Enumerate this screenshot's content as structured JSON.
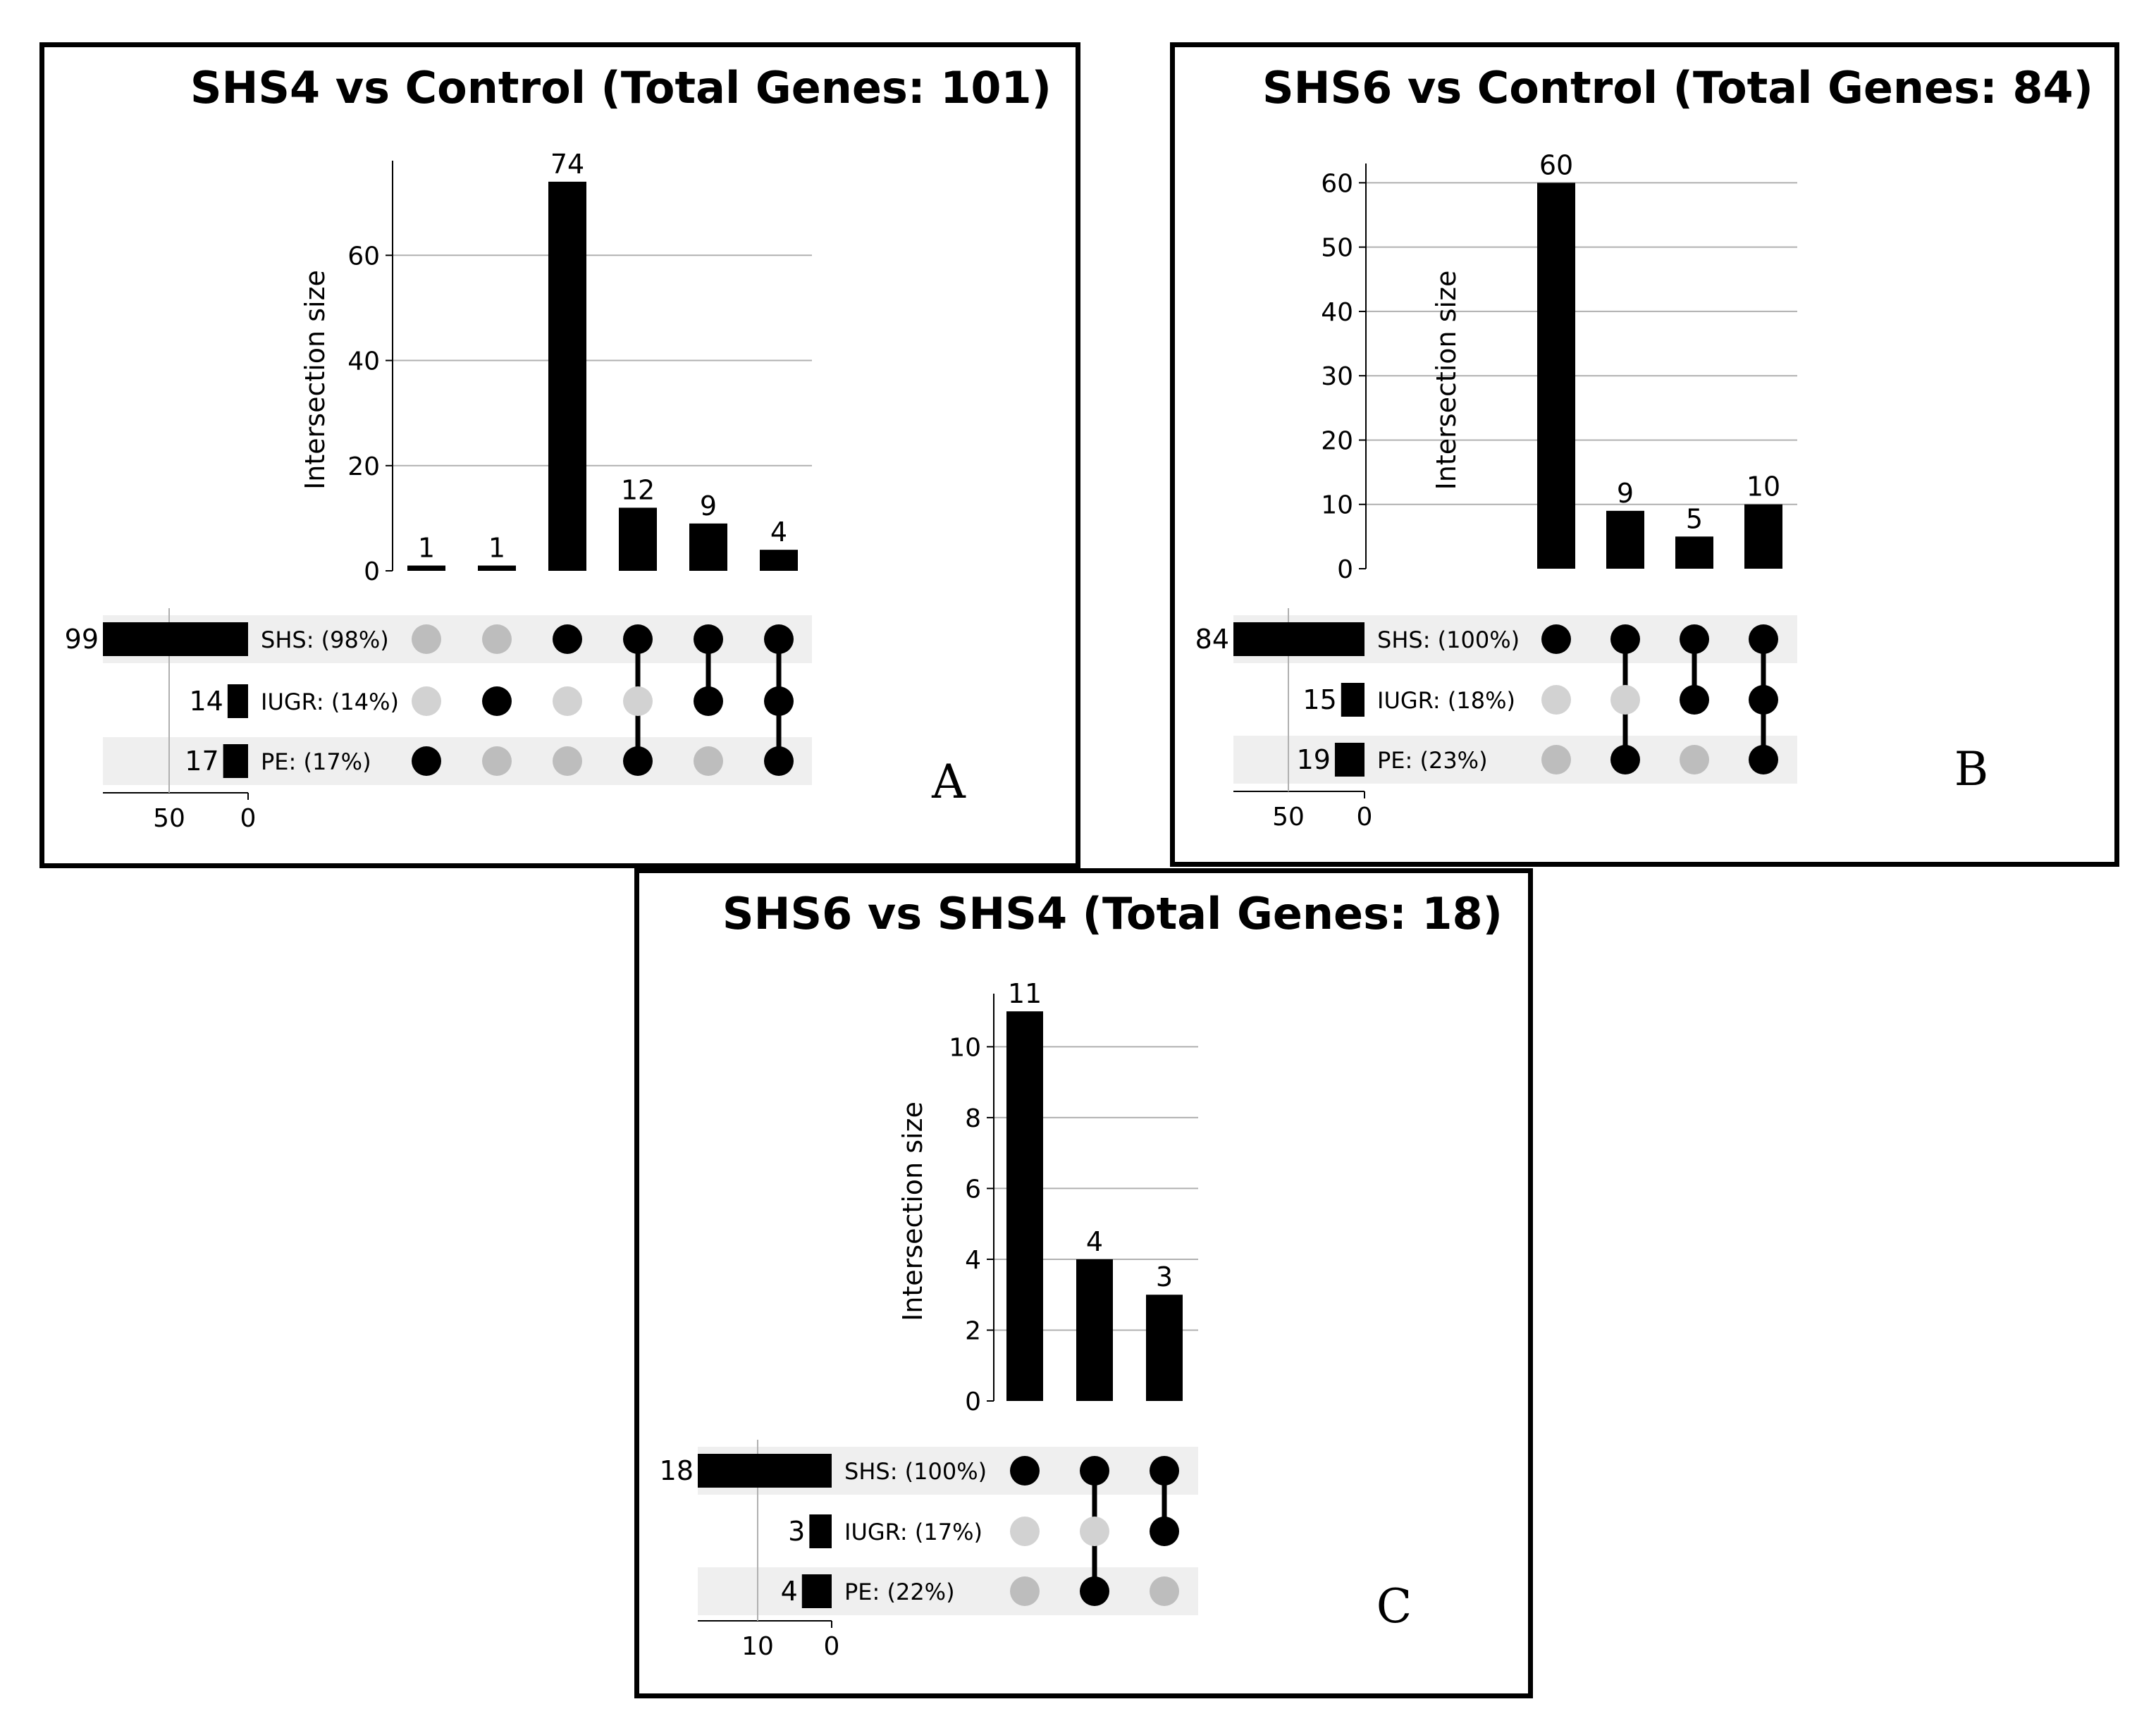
{
  "chart_data": [
    {
      "type": "upset",
      "title": "SHS4 vs Control (Total Genes: 101)",
      "panel_label": "A",
      "ylabel": "Intersection size",
      "ylim": [
        0,
        78
      ],
      "yticks": [
        0,
        20,
        40,
        60
      ],
      "set_size_ticks": [
        50,
        0
      ],
      "set_size_max": 99,
      "sets": [
        {
          "name": "SHS",
          "label": "SHS: (98%)",
          "size": 99,
          "size_label": "99"
        },
        {
          "name": "IUGR",
          "label": "IUGR: (14%)",
          "size": 14,
          "size_label": "14"
        },
        {
          "name": "PE",
          "label": "PE: (17%)",
          "size": 17,
          "size_label": "17"
        }
      ],
      "intersections": [
        {
          "sets": [
            "PE"
          ],
          "size": 1,
          "label": "1"
        },
        {
          "sets": [
            "IUGR"
          ],
          "size": 1,
          "label": "1"
        },
        {
          "sets": [
            "SHS"
          ],
          "size": 74,
          "label": "74"
        },
        {
          "sets": [
            "SHS",
            "PE"
          ],
          "size": 12,
          "label": "12"
        },
        {
          "sets": [
            "SHS",
            "IUGR"
          ],
          "size": 9,
          "label": "9"
        },
        {
          "sets": [
            "SHS",
            "IUGR",
            "PE"
          ],
          "size": 4,
          "label": "4"
        }
      ]
    },
    {
      "type": "upset",
      "title": "SHS6 vs Control (Total Genes: 84)",
      "panel_label": "B",
      "ylabel": "Intersection size",
      "ylim": [
        0,
        63
      ],
      "yticks": [
        0,
        10,
        20,
        30,
        40,
        50,
        60
      ],
      "set_size_ticks": [
        50,
        0
      ],
      "set_size_max": 84,
      "sets": [
        {
          "name": "SHS",
          "label": "SHS: (100%)",
          "size": 84,
          "size_label": "84"
        },
        {
          "name": "IUGR",
          "label": "IUGR: (18%)",
          "size": 15,
          "size_label": "15"
        },
        {
          "name": "PE",
          "label": "PE: (23%)",
          "size": 19,
          "size_label": "19"
        }
      ],
      "intersections": [
        {
          "sets": [
            "SHS"
          ],
          "size": 60,
          "label": "60"
        },
        {
          "sets": [
            "SHS",
            "PE"
          ],
          "size": 9,
          "label": "9"
        },
        {
          "sets": [
            "SHS",
            "IUGR"
          ],
          "size": 5,
          "label": "5"
        },
        {
          "sets": [
            "SHS",
            "IUGR",
            "PE"
          ],
          "size": 10,
          "label": "10"
        }
      ]
    },
    {
      "type": "upset",
      "title": "SHS6 vs SHS4 (Total Genes: 18)",
      "panel_label": "C",
      "ylabel": "Intersection size",
      "ylim": [
        0,
        11.5
      ],
      "yticks": [
        0,
        2,
        4,
        6,
        8,
        10
      ],
      "set_size_ticks": [
        10,
        0
      ],
      "set_size_max": 18,
      "sets": [
        {
          "name": "SHS",
          "label": "SHS: (100%)",
          "size": 18,
          "size_label": "18"
        },
        {
          "name": "IUGR",
          "label": "IUGR: (17%)",
          "size": 3,
          "size_label": "3"
        },
        {
          "name": "PE",
          "label": "PE: (22%)",
          "size": 4,
          "size_label": "4"
        }
      ],
      "intersections": [
        {
          "sets": [
            "SHS"
          ],
          "size": 11,
          "label": "11"
        },
        {
          "sets": [
            "SHS",
            "PE"
          ],
          "size": 4,
          "label": "4"
        },
        {
          "sets": [
            "SHS",
            "IUGR"
          ],
          "size": 3,
          "label": "3"
        }
      ]
    }
  ],
  "colors": {
    "bar": "#000000",
    "active_dot": "#000000",
    "inactive_dot_light": "#d2d2d2",
    "inactive_dot_dark": "#bdbdbd",
    "row_shade": "#efefef",
    "grid": "#b0b0b0"
  }
}
